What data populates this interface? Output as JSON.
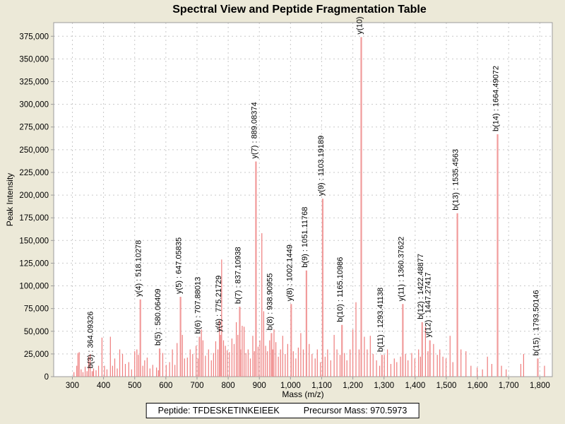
{
  "title": "Spectral View and Peptide Fragmentation Table",
  "footer": {
    "peptide": "Peptide: TFDESKETINKEIEEK",
    "precursor": "Precursor Mass: 970.5973"
  },
  "chart_data": {
    "type": "bar",
    "subtype": "mass-spectrum-stick-plot",
    "title": "Spectral View and Peptide Fragmentation Table",
    "xlabel": "Mass (m/z)",
    "ylabel": "Peak Intensity",
    "xlim": [
      240,
      1840
    ],
    "ylim": [
      0,
      390000
    ],
    "x_ticks": [
      300,
      400,
      500,
      600,
      700,
      800,
      900,
      1000,
      1100,
      1200,
      1300,
      1400,
      1500,
      1600,
      1700,
      1800
    ],
    "y_ticks": [
      0,
      25000,
      50000,
      75000,
      100000,
      125000,
      150000,
      175000,
      200000,
      225000,
      250000,
      275000,
      300000,
      325000,
      350000,
      375000
    ],
    "grid": true,
    "legend": "none",
    "colors": {
      "background": "#ece9d8",
      "plot_background": "#ffffff",
      "peak": "#ee7c7c",
      "labeled_peak": "#f19b9b",
      "grid_line": "#c9c9c9",
      "border": "#9b9b9b",
      "text": "#000000"
    },
    "labeled_peaks": [
      {
        "ion": "b(3)",
        "label": "b(3) : 364.09326",
        "mz": 364.09326,
        "intensity": 6000
      },
      {
        "ion": "y(4)",
        "label": "y(4) : 518.10278",
        "mz": 518.10278,
        "intensity": 85000
      },
      {
        "ion": "b(5)",
        "label": "b(5) : 580.06409",
        "mz": 580.06409,
        "intensity": 31000
      },
      {
        "ion": "y(5)",
        "label": "y(5) : 647.05835",
        "mz": 647.05835,
        "intensity": 88000
      },
      {
        "ion": "b(6)",
        "label": "b(6) : 707.88013",
        "mz": 707.88013,
        "intensity": 44000
      },
      {
        "ion": "y(6)",
        "label": "y(6) : 775.21729",
        "mz": 775.21729,
        "intensity": 46000
      },
      {
        "ion": "b(7)",
        "label": "b(7) : 837.10938",
        "mz": 837.10938,
        "intensity": 77000
      },
      {
        "ion": "y(7)",
        "label": "y(7) : 889.08374",
        "mz": 889.08374,
        "intensity": 237000
      },
      {
        "ion": "b(8)",
        "label": "b(8) : 938.90955",
        "mz": 938.90955,
        "intensity": 48000
      },
      {
        "ion": "y(8)",
        "label": "y(8) : 1002.1449",
        "mz": 1002.1449,
        "intensity": 80000
      },
      {
        "ion": "b(9)",
        "label": "b(9) : 1051.11768",
        "mz": 1051.11768,
        "intensity": 117000
      },
      {
        "ion": "y(9)",
        "label": "y(9) : 1103.19189",
        "mz": 1103.19189,
        "intensity": 196000
      },
      {
        "ion": "b(10)",
        "label": "b(10) : 1165.10986",
        "mz": 1165.10986,
        "intensity": 57000
      },
      {
        "ion": "y(10)",
        "label": "y(10)",
        "mz": 1227,
        "intensity": 374000
      },
      {
        "ion": "b(11)",
        "label": "b(11) : 1293.41138",
        "mz": 1293.41138,
        "intensity": 24000
      },
      {
        "ion": "y(11)",
        "label": "y(11) : 1360.37622",
        "mz": 1360.37622,
        "intensity": 80000
      },
      {
        "ion": "b(12)",
        "label": "b(12) : 1422.48877",
        "mz": 1422.48877,
        "intensity": 60000
      },
      {
        "ion": "y(12)",
        "label": "y(12) : 1447.27417",
        "mz": 1447.27417,
        "intensity": 40000
      },
      {
        "ion": "b(13)",
        "label": "b(13) : 1535.4563",
        "mz": 1535.4563,
        "intensity": 180000
      },
      {
        "ion": "b(14)",
        "label": "b(14) : 1664.49072",
        "mz": 1664.49072,
        "intensity": 267000
      },
      {
        "ion": "b(15)",
        "label": "b(15) : 1793.50146",
        "mz": 1793.50146,
        "intensity": 20000
      }
    ],
    "background_peaks": [
      [
        305,
        5000
      ],
      [
        314,
        12000
      ],
      [
        318,
        26000
      ],
      [
        322,
        27000
      ],
      [
        328,
        8000
      ],
      [
        334,
        5000
      ],
      [
        341,
        11000
      ],
      [
        347,
        6000
      ],
      [
        352,
        22000
      ],
      [
        357,
        25000
      ],
      [
        368,
        9000
      ],
      [
        376,
        7000
      ],
      [
        384,
        12000
      ],
      [
        395,
        43000
      ],
      [
        403,
        12000
      ],
      [
        411,
        8000
      ],
      [
        422,
        44000
      ],
      [
        429,
        12000
      ],
      [
        436,
        20000
      ],
      [
        444,
        9000
      ],
      [
        452,
        30000
      ],
      [
        461,
        25000
      ],
      [
        470,
        14000
      ],
      [
        481,
        16000
      ],
      [
        490,
        8000
      ],
      [
        500,
        28000
      ],
      [
        507,
        30000
      ],
      [
        512,
        24000
      ],
      [
        526,
        12000
      ],
      [
        532,
        18000
      ],
      [
        540,
        21000
      ],
      [
        549,
        9000
      ],
      [
        558,
        13000
      ],
      [
        570,
        10000
      ],
      [
        576,
        7000
      ],
      [
        590,
        26000
      ],
      [
        601,
        13000
      ],
      [
        612,
        16000
      ],
      [
        621,
        30000
      ],
      [
        629,
        13000
      ],
      [
        636,
        37000
      ],
      [
        653,
        46000
      ],
      [
        660,
        20000
      ],
      [
        669,
        21000
      ],
      [
        678,
        30000
      ],
      [
        686,
        25000
      ],
      [
        697,
        34000
      ],
      [
        703,
        20000
      ],
      [
        714,
        52000
      ],
      [
        719,
        40000
      ],
      [
        727,
        23000
      ],
      [
        737,
        30000
      ],
      [
        746,
        18000
      ],
      [
        753,
        26000
      ],
      [
        760,
        39000
      ],
      [
        767,
        30000
      ],
      [
        772,
        62000
      ],
      [
        779,
        129000
      ],
      [
        785,
        40000
      ],
      [
        791,
        34000
      ],
      [
        797,
        29000
      ],
      [
        804,
        27000
      ],
      [
        812,
        42000
      ],
      [
        819,
        36000
      ],
      [
        826,
        60000
      ],
      [
        831,
        46000
      ],
      [
        840,
        30000
      ],
      [
        845,
        56000
      ],
      [
        851,
        55000
      ],
      [
        857,
        26000
      ],
      [
        864,
        30000
      ],
      [
        871,
        20000
      ],
      [
        879,
        45000
      ],
      [
        884,
        28000
      ],
      [
        896,
        33000
      ],
      [
        902,
        40000
      ],
      [
        908,
        158000
      ],
      [
        914,
        72000
      ],
      [
        920,
        34000
      ],
      [
        926,
        28000
      ],
      [
        933,
        40000
      ],
      [
        943,
        30000
      ],
      [
        947,
        52000
      ],
      [
        953,
        38000
      ],
      [
        961,
        22000
      ],
      [
        968,
        30000
      ],
      [
        975,
        45000
      ],
      [
        983,
        25000
      ],
      [
        991,
        36000
      ],
      [
        1009,
        28000
      ],
      [
        1017,
        20000
      ],
      [
        1025,
        32000
      ],
      [
        1033,
        48000
      ],
      [
        1041,
        30000
      ],
      [
        1060,
        36000
      ],
      [
        1069,
        25000
      ],
      [
        1079,
        20000
      ],
      [
        1086,
        30000
      ],
      [
        1096,
        16000
      ],
      [
        1111,
        22000
      ],
      [
        1119,
        30000
      ],
      [
        1129,
        18000
      ],
      [
        1140,
        46000
      ],
      [
        1149,
        30000
      ],
      [
        1159,
        24000
      ],
      [
        1173,
        26000
      ],
      [
        1181,
        18000
      ],
      [
        1191,
        30000
      ],
      [
        1200,
        52000
      ],
      [
        1210,
        82000
      ],
      [
        1220,
        30000
      ],
      [
        1237,
        44000
      ],
      [
        1246,
        30000
      ],
      [
        1256,
        45000
      ],
      [
        1265,
        25000
      ],
      [
        1276,
        18000
      ],
      [
        1286,
        12000
      ],
      [
        1301,
        24000
      ],
      [
        1311,
        30000
      ],
      [
        1322,
        14000
      ],
      [
        1333,
        20000
      ],
      [
        1341,
        16000
      ],
      [
        1353,
        22000
      ],
      [
        1369,
        25000
      ],
      [
        1377,
        18000
      ],
      [
        1389,
        26000
      ],
      [
        1399,
        20000
      ],
      [
        1411,
        30000
      ],
      [
        1417,
        22000
      ],
      [
        1433,
        55000
      ],
      [
        1441,
        28000
      ],
      [
        1459,
        36000
      ],
      [
        1471,
        24000
      ],
      [
        1479,
        30000
      ],
      [
        1489,
        22000
      ],
      [
        1499,
        20000
      ],
      [
        1512,
        45000
      ],
      [
        1521,
        16000
      ],
      [
        1547,
        30000
      ],
      [
        1563,
        28000
      ],
      [
        1579,
        12000
      ],
      [
        1599,
        10000
      ],
      [
        1616,
        8000
      ],
      [
        1632,
        22000
      ],
      [
        1646,
        14000
      ],
      [
        1677,
        12000
      ],
      [
        1692,
        8000
      ],
      [
        1739,
        14000
      ],
      [
        1748,
        25000
      ],
      [
        1815,
        12000
      ]
    ]
  }
}
